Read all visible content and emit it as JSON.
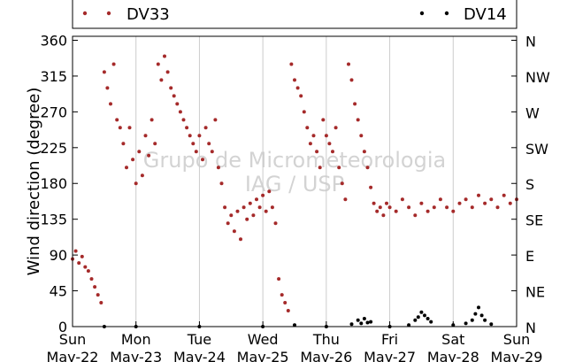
{
  "chart_data": {
    "type": "scatter",
    "ylabel": "Wind direction (degree)",
    "ylim": [
      0,
      365
    ],
    "yticks": [
      0,
      45,
      90,
      135,
      180,
      225,
      270,
      315,
      360
    ],
    "y2ticks": [
      "N",
      "NE",
      "E",
      "SE",
      "S",
      "SW",
      "W",
      "NW",
      "N"
    ],
    "xlim_days": [
      22,
      29
    ],
    "xticks": [
      {
        "day": "Sun",
        "date": "May-22"
      },
      {
        "day": "Mon",
        "date": "May-23"
      },
      {
        "day": "Tue",
        "date": "May-24"
      },
      {
        "day": "Wed",
        "date": "May-25"
      },
      {
        "day": "Thu",
        "date": "May-26"
      },
      {
        "day": "Fri",
        "date": "May-27"
      },
      {
        "day": "Sat",
        "date": "May-28"
      },
      {
        "day": "Sun",
        "date": "May-29"
      }
    ],
    "grid": "vertical",
    "legend_placement": "top",
    "watermark": [
      "Grupo de Micrometeorologia",
      "IAG / USP"
    ],
    "series": [
      {
        "name": "DV33",
        "color": "#a52a2a",
        "points": [
          [
            22.0,
            85
          ],
          [
            22.05,
            95
          ],
          [
            22.1,
            80
          ],
          [
            22.15,
            88
          ],
          [
            22.2,
            75
          ],
          [
            22.25,
            70
          ],
          [
            22.3,
            60
          ],
          [
            22.35,
            50
          ],
          [
            22.4,
            40
          ],
          [
            22.45,
            30
          ],
          [
            22.5,
            320
          ],
          [
            22.55,
            300
          ],
          [
            22.6,
            280
          ],
          [
            22.65,
            330
          ],
          [
            22.7,
            260
          ],
          [
            22.75,
            250
          ],
          [
            22.8,
            230
          ],
          [
            22.85,
            200
          ],
          [
            22.9,
            250
          ],
          [
            22.95,
            210
          ],
          [
            23.0,
            180
          ],
          [
            23.05,
            220
          ],
          [
            23.1,
            190
          ],
          [
            23.15,
            240
          ],
          [
            23.2,
            215
          ],
          [
            23.25,
            260
          ],
          [
            23.3,
            230
          ],
          [
            23.35,
            330
          ],
          [
            23.4,
            310
          ],
          [
            23.45,
            340
          ],
          [
            23.5,
            320
          ],
          [
            23.55,
            300
          ],
          [
            23.6,
            290
          ],
          [
            23.65,
            280
          ],
          [
            23.7,
            270
          ],
          [
            23.75,
            260
          ],
          [
            23.8,
            250
          ],
          [
            23.85,
            240
          ],
          [
            23.9,
            230
          ],
          [
            23.95,
            220
          ],
          [
            24.0,
            240
          ],
          [
            24.05,
            210
          ],
          [
            24.1,
            250
          ],
          [
            24.15,
            230
          ],
          [
            24.2,
            220
          ],
          [
            24.25,
            260
          ],
          [
            24.3,
            200
          ],
          [
            24.35,
            180
          ],
          [
            24.4,
            150
          ],
          [
            24.45,
            130
          ],
          [
            24.5,
            140
          ],
          [
            24.55,
            120
          ],
          [
            24.6,
            145
          ],
          [
            24.65,
            110
          ],
          [
            24.7,
            150
          ],
          [
            24.75,
            135
          ],
          [
            24.8,
            155
          ],
          [
            24.85,
            140
          ],
          [
            24.9,
            160
          ],
          [
            24.95,
            150
          ],
          [
            25.0,
            165
          ],
          [
            25.05,
            145
          ],
          [
            25.1,
            170
          ],
          [
            25.15,
            150
          ],
          [
            25.2,
            130
          ],
          [
            25.25,
            60
          ],
          [
            25.3,
            40
          ],
          [
            25.35,
            30
          ],
          [
            25.4,
            20
          ],
          [
            25.45,
            330
          ],
          [
            25.5,
            310
          ],
          [
            25.55,
            300
          ],
          [
            25.6,
            290
          ],
          [
            25.65,
            270
          ],
          [
            25.7,
            250
          ],
          [
            25.75,
            230
          ],
          [
            25.8,
            240
          ],
          [
            25.85,
            220
          ],
          [
            25.9,
            200
          ],
          [
            25.95,
            260
          ],
          [
            26.0,
            240
          ],
          [
            26.05,
            230
          ],
          [
            26.1,
            220
          ],
          [
            26.15,
            250
          ],
          [
            26.2,
            200
          ],
          [
            26.25,
            180
          ],
          [
            26.3,
            160
          ],
          [
            26.35,
            330
          ],
          [
            26.4,
            310
          ],
          [
            26.45,
            280
          ],
          [
            26.5,
            260
          ],
          [
            26.55,
            240
          ],
          [
            26.6,
            220
          ],
          [
            26.65,
            200
          ],
          [
            26.7,
            175
          ],
          [
            26.75,
            155
          ],
          [
            26.8,
            145
          ],
          [
            26.85,
            150
          ],
          [
            26.9,
            140
          ],
          [
            26.95,
            155
          ],
          [
            27.0,
            150
          ],
          [
            27.1,
            145
          ],
          [
            27.2,
            160
          ],
          [
            27.3,
            150
          ],
          [
            27.4,
            140
          ],
          [
            27.5,
            155
          ],
          [
            27.6,
            145
          ],
          [
            27.7,
            150
          ],
          [
            27.8,
            160
          ],
          [
            27.9,
            150
          ],
          [
            28.0,
            145
          ],
          [
            28.1,
            155
          ],
          [
            28.2,
            160
          ],
          [
            28.3,
            150
          ],
          [
            28.4,
            165
          ],
          [
            28.5,
            155
          ],
          [
            28.6,
            160
          ],
          [
            28.7,
            150
          ],
          [
            28.8,
            165
          ],
          [
            28.9,
            155
          ],
          [
            29.0,
            160
          ]
        ]
      },
      {
        "name": "DV14",
        "color": "#000000",
        "points": [
          [
            22.5,
            0
          ],
          [
            23.0,
            0
          ],
          [
            24.0,
            0
          ],
          [
            25.0,
            0
          ],
          [
            25.5,
            2
          ],
          [
            26.0,
            0
          ],
          [
            26.4,
            3
          ],
          [
            26.5,
            8
          ],
          [
            26.55,
            4
          ],
          [
            26.6,
            10
          ],
          [
            26.65,
            5
          ],
          [
            26.7,
            6
          ],
          [
            27.0,
            0
          ],
          [
            27.3,
            2
          ],
          [
            27.4,
            8
          ],
          [
            27.45,
            12
          ],
          [
            27.5,
            18
          ],
          [
            27.55,
            14
          ],
          [
            27.6,
            10
          ],
          [
            27.65,
            6
          ],
          [
            28.0,
            2
          ],
          [
            28.2,
            4
          ],
          [
            28.3,
            8
          ],
          [
            28.35,
            16
          ],
          [
            28.4,
            24
          ],
          [
            28.45,
            14
          ],
          [
            28.5,
            8
          ],
          [
            28.6,
            3
          ]
        ]
      }
    ]
  }
}
